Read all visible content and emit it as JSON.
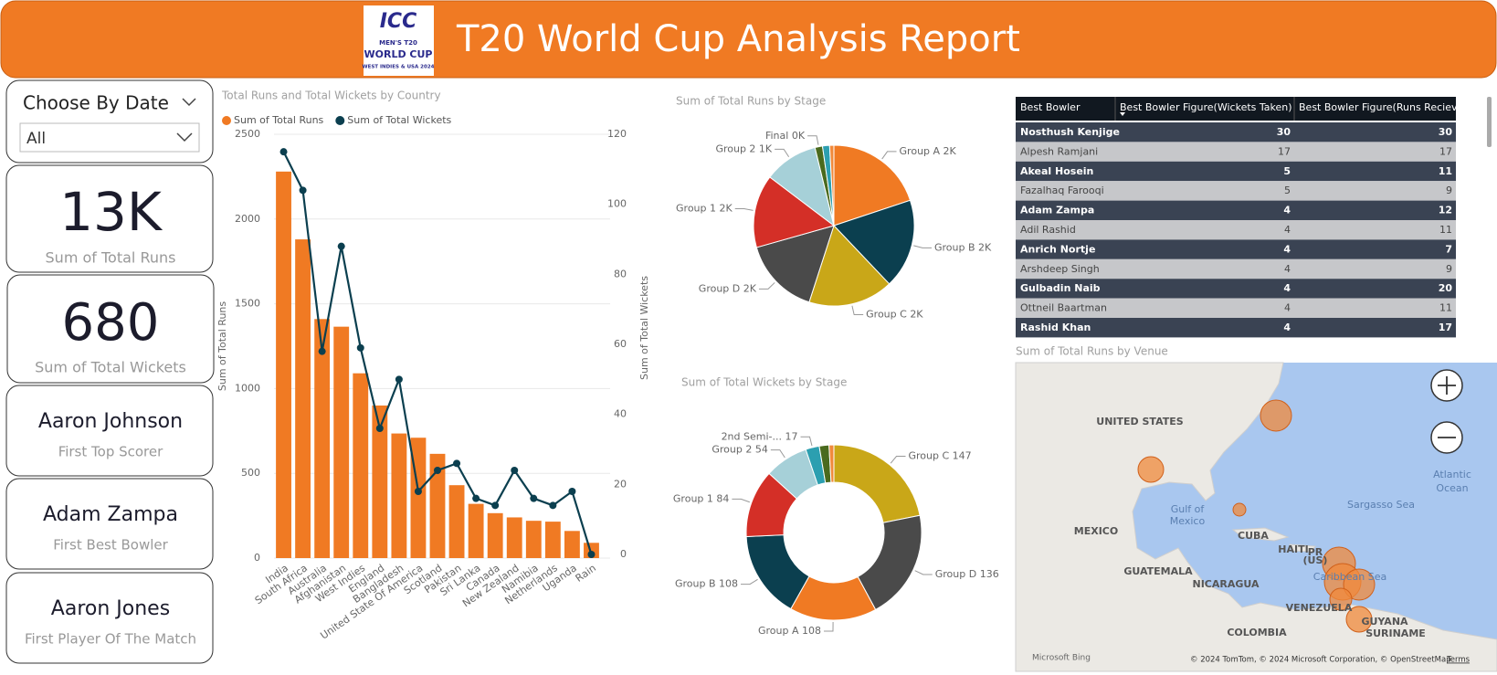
{
  "header": {
    "title": "T20 World Cup Analysis Report",
    "logo": [
      "ICC",
      "MEN'S T20",
      "WORLD CUP",
      "WEST INDIES & USA 2024"
    ]
  },
  "slicer": {
    "label": "Choose By Date",
    "value": "All"
  },
  "cards": [
    {
      "value": "13K",
      "label": "Sum of Total Runs"
    },
    {
      "value": "680",
      "label": "Sum of Total Wickets"
    },
    {
      "value": "Aaron Johnson",
      "label": "First Top Scorer"
    },
    {
      "value": "Adam Zampa",
      "label": "First Best Bowler"
    },
    {
      "value": "Aaron Jones",
      "label": "First Player Of The Match"
    }
  ],
  "chart_data": [
    {
      "type": "combo",
      "title": "Total Runs and Total Wickets by Country",
      "y_label": "Sum of Total Runs",
      "y2_label": "Sum of Total Wickets",
      "categories": [
        "India",
        "South Africa",
        "Australia",
        "Afghanistan",
        "West Indies",
        "England",
        "Bangladesh",
        "United State Of America",
        "Scotland",
        "Pakistan",
        "Sri Lanka",
        "Canada",
        "New Zealand",
        "Namibia",
        "Netherlands",
        "Uganda",
        "Rain"
      ],
      "series": [
        {
          "name": "Sum of Total Runs",
          "type": "bar",
          "color": "#f07a23",
          "values": [
            2280,
            1880,
            1410,
            1365,
            1090,
            900,
            735,
            710,
            615,
            430,
            320,
            265,
            240,
            220,
            215,
            160,
            90
          ]
        },
        {
          "name": "Sum of Total Wickets",
          "type": "line",
          "axis": "y2",
          "color": "#0b3f4f",
          "values": [
            115,
            104,
            58,
            88,
            59,
            36,
            50,
            18,
            24,
            26,
            16,
            14,
            24,
            16,
            14,
            18,
            0
          ]
        }
      ],
      "ylim": [
        0,
        2500
      ],
      "yticks": [
        0,
        500,
        1000,
        1500,
        2000,
        2500
      ],
      "y2lim": [
        0,
        120
      ],
      "y2ticks": [
        0,
        20,
        40,
        60,
        80,
        100,
        120
      ],
      "grid": true
    },
    {
      "type": "pie",
      "title": "Sum of Total Runs by Stage",
      "categories": [
        "Group A",
        "Group B",
        "Group C",
        "Group D",
        "Group 1",
        "Group 2",
        "Final",
        null,
        null
      ],
      "values": [
        2100,
        1900,
        1800,
        1650,
        1550,
        1150,
        160,
        150,
        90
      ],
      "value_labels": [
        "2K",
        "2K",
        "2K",
        "2K",
        "2K",
        "1K",
        "0K",
        null,
        null
      ],
      "colors": [
        "#f07a23",
        "#0b3f4f",
        "#c9a718",
        "#4a4a4a",
        "#d42f27",
        "#a6d0d8",
        "#4a6a1e",
        "#2c9fb0",
        "#f08a3c"
      ]
    },
    {
      "type": "donut",
      "title": "Sum of Total Wickets by Stage",
      "categories": [
        "Group C",
        "Group D",
        "Group A",
        "Group B",
        "Group 1",
        "Group 2",
        "2nd Semi-...",
        null,
        null
      ],
      "values": [
        147,
        136,
        108,
        108,
        84,
        54,
        17,
        12,
        6
      ],
      "colors": [
        "#c9a718",
        "#4a4a4a",
        "#f07a23",
        "#0b3f4f",
        "#d42f27",
        "#a6d0d8",
        "#2c9fb0",
        "#4a6a1e",
        "#f08a3c"
      ]
    }
  ],
  "table": {
    "columns": [
      "Best Bowler",
      "Best Bowler Figure(Wickets Taken)",
      "Best Bowler Figure(Runs Recieved)"
    ],
    "rows": [
      [
        "Nosthush Kenjige",
        30,
        30
      ],
      [
        "Alpesh Ramjani",
        17,
        17
      ],
      [
        "Akeal Hosein",
        5,
        11
      ],
      [
        "Fazalhaq Farooqi",
        5,
        9
      ],
      [
        "Adam Zampa",
        4,
        12
      ],
      [
        "Adil Rashid",
        4,
        11
      ],
      [
        "Anrich Nortje",
        4,
        7
      ],
      [
        "Arshdeep Singh",
        4,
        9
      ],
      [
        "Gulbadin Naib",
        4,
        20
      ],
      [
        "Ottneil Baartman",
        4,
        11
      ],
      [
        "Rashid Khan",
        4,
        17
      ]
    ]
  },
  "map": {
    "title": "Sum of Total Runs by Venue",
    "labels": [
      "UNITED STATES",
      "MEXICO",
      "Gulf of",
      "Mexico",
      "CUBA",
      "HAITI",
      "PR",
      "(US)",
      "Caribbean Sea",
      "Sargasso Sea",
      "Atlantic",
      "Ocean",
      "GUATEMALA",
      "NICARAGUA",
      "VENEZUELA",
      "COLOMBIA",
      "GUYANA",
      "SURINAME",
      "Microsoft Bing",
      "© 2024 TomTom, © 2024 Microsoft Corporation, © OpenStreetMap",
      "Terms"
    ]
  }
}
